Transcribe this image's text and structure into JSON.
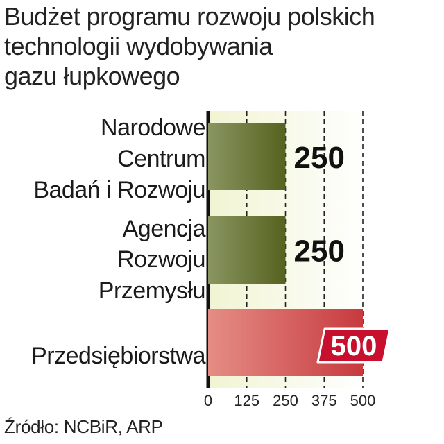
{
  "title_lines": [
    "Budżet programu rozwoju polskich",
    "technologii wydobywania",
    "gazu łupkowego"
  ],
  "source": "Źródło: NCBiR, ARP",
  "chart_data": {
    "type": "bar",
    "orientation": "horizontal",
    "categories": [
      [
        "Narodowe",
        "Centrum",
        "Badań i Rozwoju"
      ],
      [
        "Agencja",
        "Rozwoju",
        "Przemysłu"
      ],
      [
        "Przedsiębiorstwa"
      ]
    ],
    "values": [
      250,
      250,
      500
    ],
    "value_labels": [
      "250",
      "250",
      "500"
    ],
    "xlim": [
      0,
      500
    ],
    "x_ticks": [
      0,
      125,
      250,
      375,
      500
    ],
    "x_tick_labels": [
      "0",
      "125",
      "250",
      "375",
      "500"
    ],
    "grid": "vertical-dashed",
    "colors": {
      "bar_default": "#5f6b2e",
      "bar_default_light": "#8a9561",
      "bar_highlight": "#c73a3f",
      "bar_highlight_light": "#e58d85",
      "badge": "#c8102e",
      "plot_bg_left": "#f3f5d8",
      "plot_bg_right": "#ffffff"
    }
  }
}
